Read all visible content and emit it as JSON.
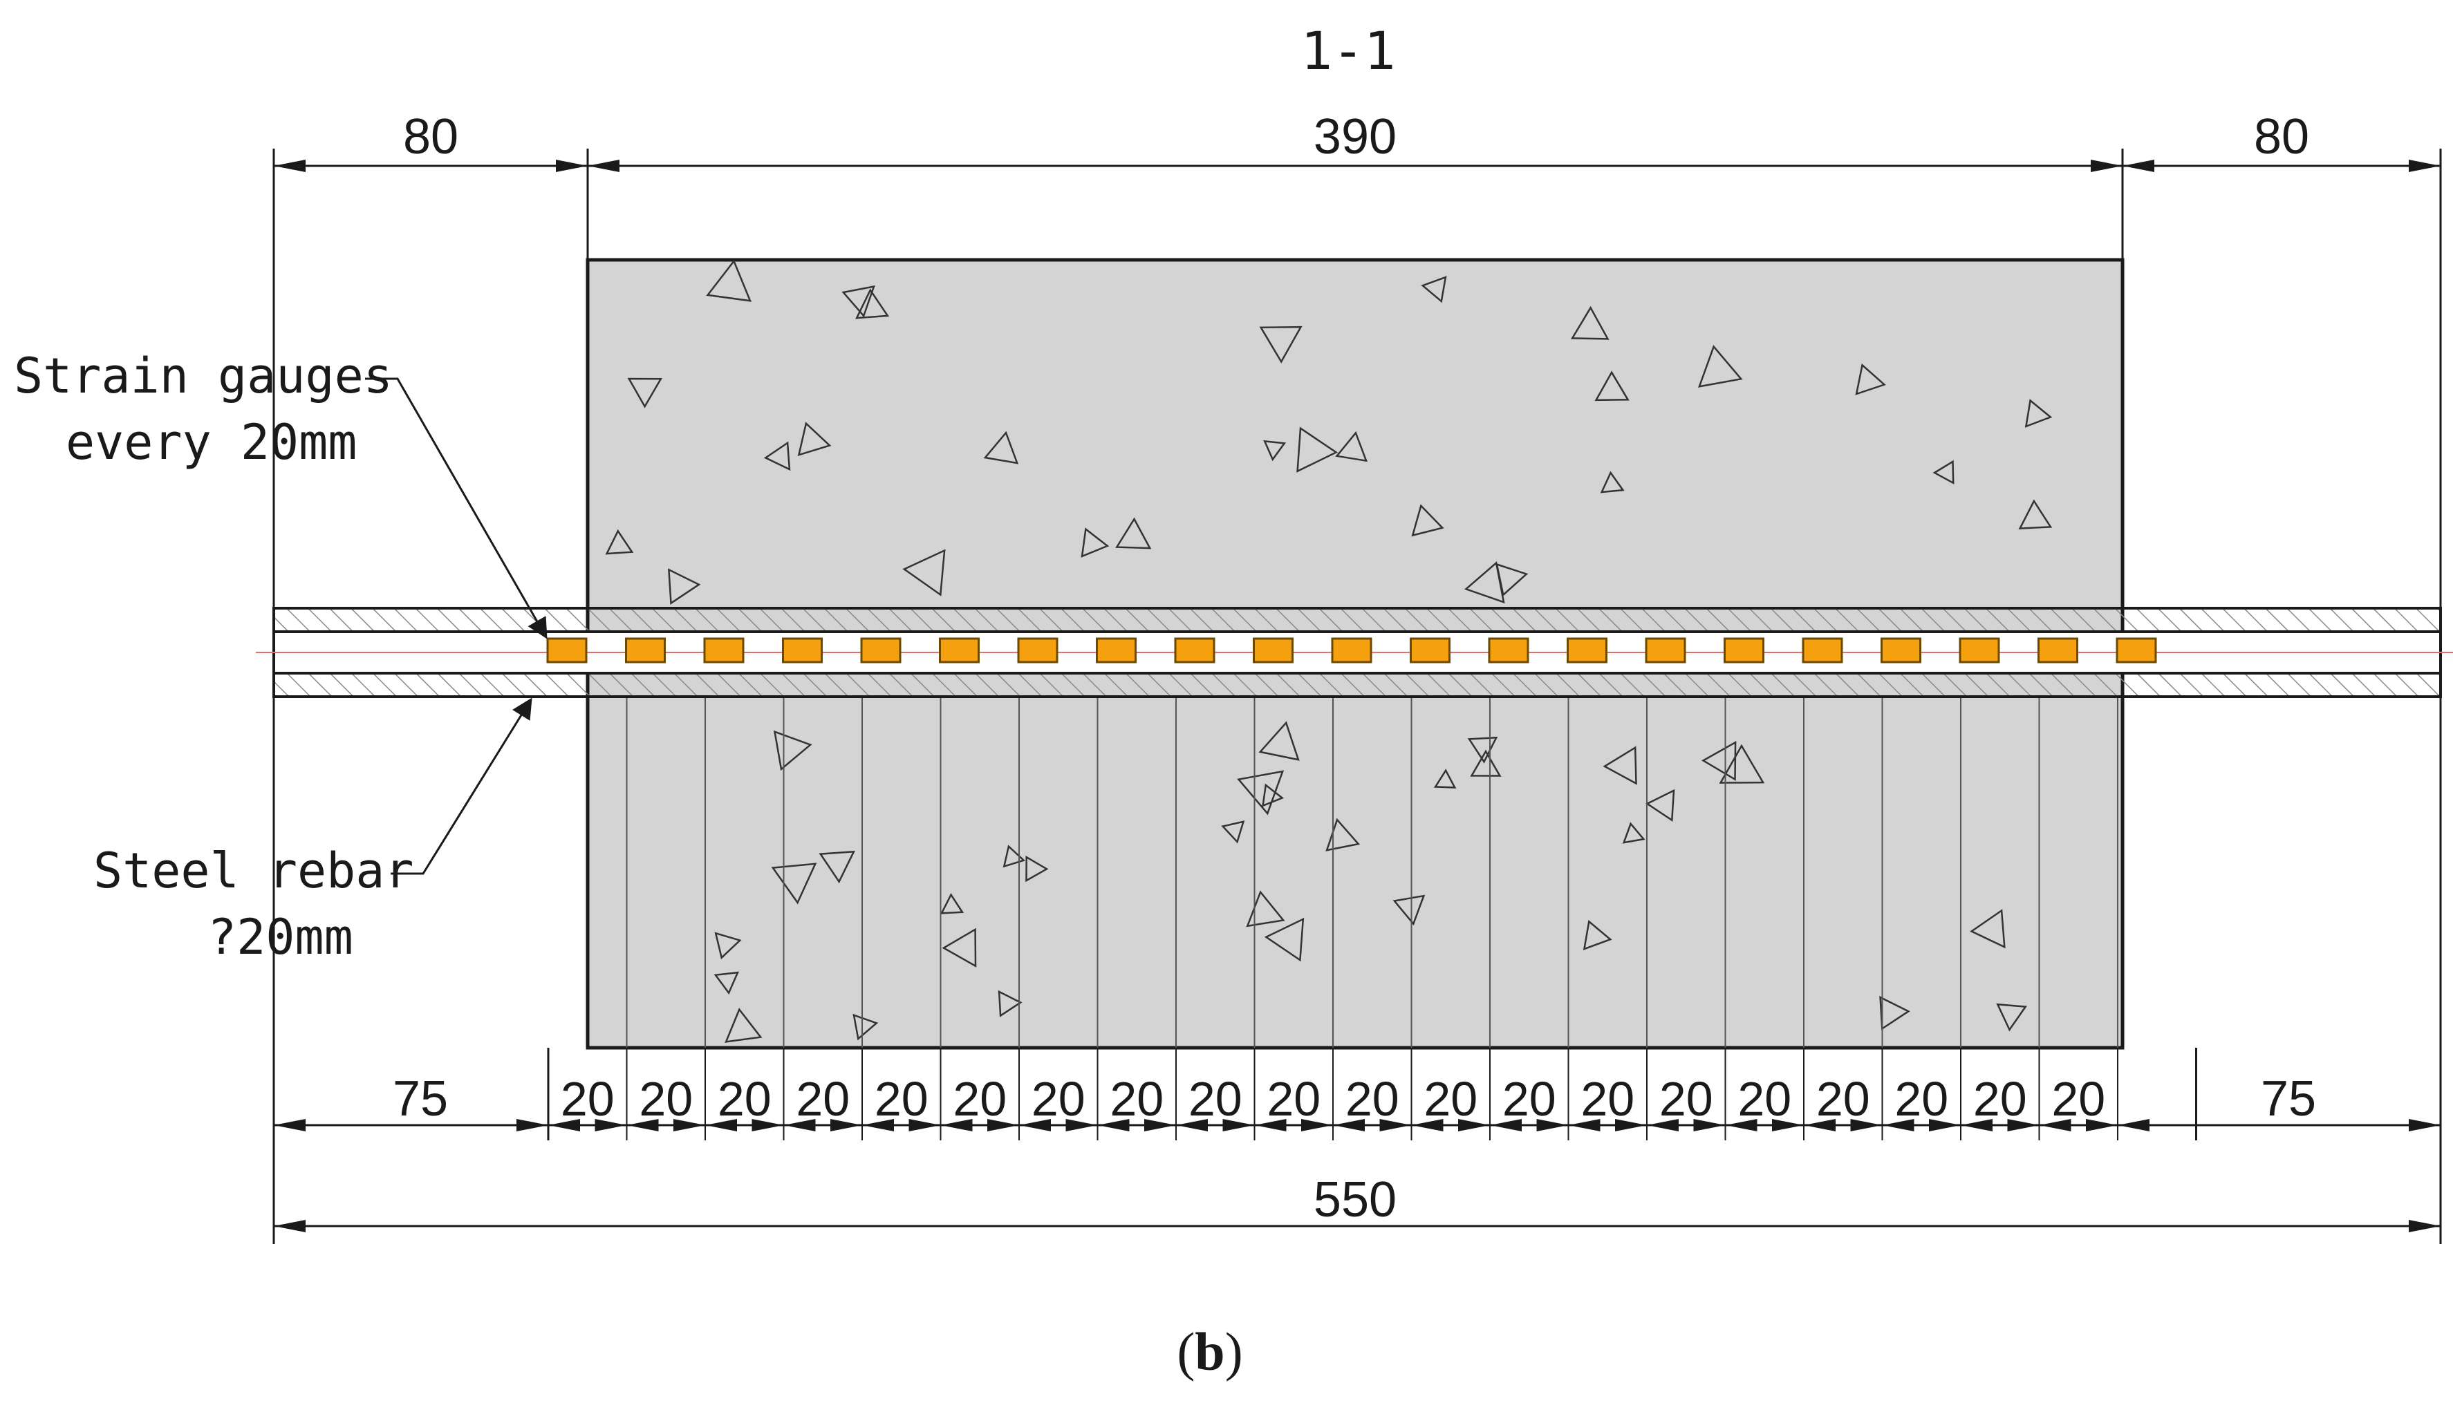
{
  "section_title": "1-1",
  "figure_label": "b",
  "dimensions": {
    "top_left": "80",
    "top_middle": "390",
    "top_right": "80",
    "bottom_left": "75",
    "bottom_right": "75",
    "gauge_spacing": "20",
    "gauge_spacing_count": 20,
    "overall": "550"
  },
  "labels": {
    "strain_gauges_line1": "Strain gauges",
    "strain_gauges_line2": "every 20mm",
    "steel_rebar_line1": "Steel rebar",
    "steel_rebar_line2": "?20mm"
  },
  "strain_gauge_count": 21,
  "colors": {
    "concrete": "#d4d4d4",
    "gauge": "#f5a00f",
    "centerline": "#e07070",
    "line": "#1a1a1a"
  }
}
